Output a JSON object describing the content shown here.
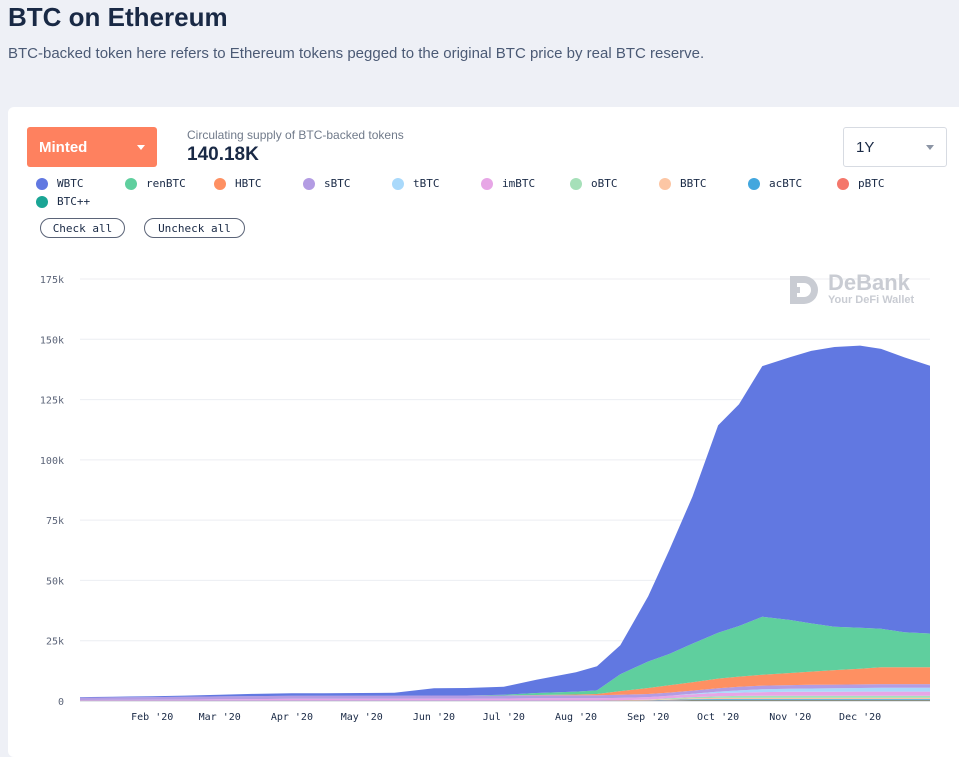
{
  "header": {
    "title": "BTC on Ethereum",
    "subtitle": "BTC-backed token here refers to Ethereum tokens pegged to the original BTC price by real BTC reserve."
  },
  "controls": {
    "type_select": "Minted",
    "range_select": "1Y",
    "check_all": "Check all",
    "uncheck_all": "Uncheck all"
  },
  "supply": {
    "label": "Circulating supply of BTC-backed tokens",
    "value": "140.18K"
  },
  "watermark": {
    "brand": "DeBank",
    "tagline": "Your DeFi Wallet"
  },
  "legend": [
    {
      "name": "WBTC",
      "color": "#6178e1"
    },
    {
      "name": "renBTC",
      "color": "#5fcf9e"
    },
    {
      "name": "HBTC",
      "color": "#fe9062"
    },
    {
      "name": "sBTC",
      "color": "#b39ce3"
    },
    {
      "name": "tBTC",
      "color": "#a9d9fb"
    },
    {
      "name": "imBTC",
      "color": "#e7a6e6"
    },
    {
      "name": "oBTC",
      "color": "#a6e0b9"
    },
    {
      "name": "BBTC",
      "color": "#fcc6a4"
    },
    {
      "name": "acBTC",
      "color": "#43a7de"
    },
    {
      "name": "pBTC",
      "color": "#f4776b"
    },
    {
      "name": "BTC++",
      "color": "#1aa595"
    }
  ],
  "chart_data": {
    "type": "area",
    "stacked": true,
    "title": "",
    "xlabel": "",
    "ylabel": "",
    "ylim": [
      0,
      175000
    ],
    "yticks": [
      0,
      25000,
      50000,
      75000,
      100000,
      125000,
      150000,
      175000
    ],
    "ytick_labels": [
      "0",
      "25k",
      "50k",
      "75k",
      "100k",
      "125k",
      "150k",
      "175k"
    ],
    "grid": true,
    "x_range": [
      "2020-01-01",
      "2020-12-31"
    ],
    "xtick_dates": [
      "2020-02-01",
      "2020-03-01",
      "2020-04-01",
      "2020-05-01",
      "2020-06-01",
      "2020-07-01",
      "2020-08-01",
      "2020-09-01",
      "2020-10-01",
      "2020-11-01",
      "2020-12-01"
    ],
    "xtick_labels": [
      "Feb '20",
      "Mar '20",
      "Apr '20",
      "May '20",
      "Jun '20",
      "Jul '20",
      "Aug '20",
      "Sep '20",
      "Oct '20",
      "Nov '20",
      "Dec '20"
    ],
    "x": [
      "2020-01-01",
      "2020-01-15",
      "2020-02-01",
      "2020-02-15",
      "2020-03-01",
      "2020-03-15",
      "2020-04-01",
      "2020-04-15",
      "2020-05-01",
      "2020-05-15",
      "2020-06-01",
      "2020-06-15",
      "2020-07-01",
      "2020-07-15",
      "2020-08-01",
      "2020-08-10",
      "2020-08-20",
      "2020-09-01",
      "2020-09-10",
      "2020-09-20",
      "2020-10-01",
      "2020-10-10",
      "2020-10-20",
      "2020-11-01",
      "2020-11-10",
      "2020-11-20",
      "2020-12-01",
      "2020-12-10",
      "2020-12-20",
      "2020-12-31"
    ],
    "series": [
      {
        "name": "BTC++",
        "values": [
          100,
          100,
          100,
          100,
          100,
          100,
          100,
          100,
          100,
          100,
          100,
          100,
          100,
          100,
          100,
          100,
          100,
          100,
          100,
          200,
          200,
          200,
          200,
          200,
          200,
          200,
          200,
          200,
          200,
          200
        ]
      },
      {
        "name": "pBTC",
        "values": [
          0,
          0,
          0,
          0,
          0,
          0,
          0,
          0,
          0,
          0,
          0,
          0,
          0,
          0,
          0,
          0,
          100,
          100,
          200,
          200,
          200,
          200,
          200,
          200,
          200,
          200,
          200,
          200,
          200,
          200
        ]
      },
      {
        "name": "acBTC",
        "values": [
          0,
          0,
          0,
          0,
          0,
          0,
          0,
          0,
          0,
          0,
          0,
          0,
          0,
          0,
          0,
          0,
          0,
          100,
          200,
          300,
          400,
          400,
          400,
          400,
          400,
          400,
          400,
          400,
          400,
          400
        ]
      },
      {
        "name": "BBTC",
        "values": [
          0,
          0,
          0,
          0,
          0,
          0,
          0,
          0,
          0,
          0,
          0,
          0,
          0,
          0,
          0,
          0,
          100,
          200,
          300,
          400,
          500,
          500,
          500,
          500,
          500,
          500,
          500,
          500,
          500,
          500
        ]
      },
      {
        "name": "oBTC",
        "values": [
          0,
          0,
          0,
          0,
          0,
          0,
          0,
          0,
          0,
          0,
          0,
          0,
          0,
          0,
          0,
          0,
          0,
          100,
          300,
          500,
          700,
          800,
          900,
          900,
          900,
          900,
          900,
          900,
          900,
          900
        ]
      },
      {
        "name": "imBTC",
        "values": [
          300,
          350,
          400,
          500,
          600,
          700,
          800,
          800,
          800,
          800,
          900,
          900,
          900,
          1000,
          1000,
          1000,
          1000,
          1000,
          1100,
          1200,
          1300,
          1400,
          1500,
          1600,
          1600,
          1600,
          1700,
          1700,
          1700,
          1700
        ]
      },
      {
        "name": "tBTC",
        "values": [
          0,
          0,
          0,
          0,
          0,
          0,
          0,
          0,
          0,
          0,
          0,
          0,
          0,
          0,
          0,
          0,
          0,
          0,
          0,
          200,
          600,
          900,
          1200,
          1300,
          1400,
          1500,
          1500,
          1600,
          1600,
          1600
        ]
      },
      {
        "name": "sBTC",
        "values": [
          1000,
          1050,
          1100,
          1150,
          1200,
          1250,
          1300,
          1300,
          1300,
          1300,
          1300,
          1300,
          1300,
          1300,
          1300,
          1300,
          1300,
          1300,
          1300,
          1300,
          1400,
          1500,
          1500,
          1500,
          1500,
          1500,
          1500,
          1500,
          1500,
          1500
        ]
      },
      {
        "name": "HBTC",
        "values": [
          0,
          0,
          0,
          0,
          0,
          0,
          0,
          0,
          0,
          0,
          0,
          0,
          0,
          100,
          300,
          500,
          1500,
          2500,
          3000,
          3500,
          4000,
          4200,
          4500,
          5000,
          5500,
          6000,
          6500,
          7000,
          7000,
          7000
        ]
      },
      {
        "name": "renBTC",
        "values": [
          0,
          0,
          0,
          0,
          0,
          0,
          0,
          0,
          0,
          0,
          0,
          0,
          300,
          800,
          1200,
          1500,
          7000,
          11000,
          13000,
          16000,
          19000,
          21000,
          24000,
          22000,
          20000,
          18000,
          17000,
          16000,
          14500,
          14000
        ]
      },
      {
        "name": "WBTC",
        "values": [
          200,
          300,
          400,
          500,
          700,
          900,
          1000,
          1000,
          1100,
          1200,
          3000,
          3100,
          3300,
          5500,
          8000,
          10000,
          12000,
          27000,
          43000,
          61000,
          86000,
          92000,
          104000,
          109000,
          113000,
          116000,
          117000,
          116000,
          114000,
          111000
        ]
      }
    ]
  }
}
